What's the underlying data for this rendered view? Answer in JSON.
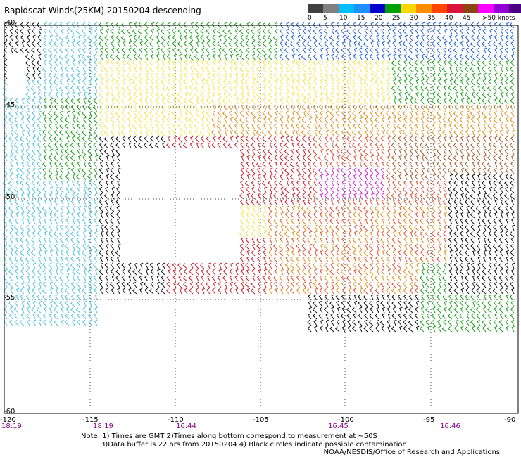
{
  "title": "Rapidscat Winds(25KM) 20150204 descending",
  "scale": {
    "colors": [
      "#404040",
      "#808080",
      "#00bfff",
      "#1e90ff",
      "#0000cd",
      "#00a000",
      "#ffd700",
      "#ff8c00",
      "#ff4500",
      "#dc143c",
      "#8b4513",
      "#ff00ff",
      "#9400d3",
      "#4b0082"
    ],
    "labels": [
      "0",
      "5",
      "10",
      "15",
      "20",
      "25",
      "30",
      "35",
      "40",
      "45",
      ">50 knots"
    ]
  },
  "axes": {
    "lon": [
      "-120",
      "-115",
      "-110",
      "-105",
      "-100",
      "-95",
      "-90"
    ],
    "lat": [
      "-40",
      "-45",
      "-50",
      "-55",
      "-60"
    ]
  },
  "times": [
    "18:19",
    "18:19",
    "16:44",
    "16:45",
    "16:46"
  ],
  "notes": [
    "Note: 1) Times are GMT 2)Times along bottom correspond to measurement at ~50S",
    "3)Data buffer is 22 hrs from 20150204 4) Black circles indicate possible contamination"
  ],
  "credit": "NOAA/NESDIS/Office of Research and Applications"
}
